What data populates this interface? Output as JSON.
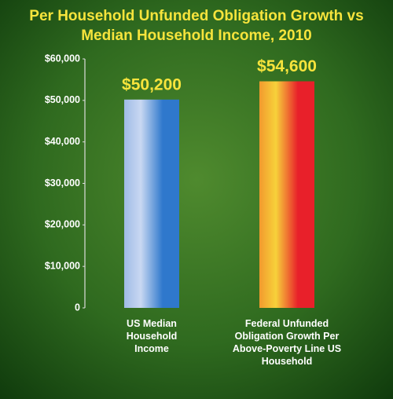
{
  "chart_data": {
    "type": "bar",
    "title": "Per Household Unfunded Obligation Growth vs Median Household Income, 2010",
    "categories": [
      "US Median Household Income",
      "Federal Unfunded Obligation Growth Per Above-Poverty Line US Household"
    ],
    "values": [
      50200,
      54600
    ],
    "value_labels": [
      "$50,200",
      "$54,600"
    ],
    "colors": [
      "#2f78cc",
      "#e8202a"
    ],
    "ylim": [
      0,
      60000
    ],
    "yticks": [
      0,
      {
        "value": 10000,
        "label": "$10,000"
      },
      {
        "value": 20000,
        "label": "$20,000"
      },
      {
        "value": 30000,
        "label": "$30,000"
      },
      {
        "value": 40000,
        "label": "$40,000"
      },
      {
        "value": 50000,
        "label": "$50,000"
      },
      {
        "value": 60000,
        "label": "$60,000"
      }
    ]
  }
}
